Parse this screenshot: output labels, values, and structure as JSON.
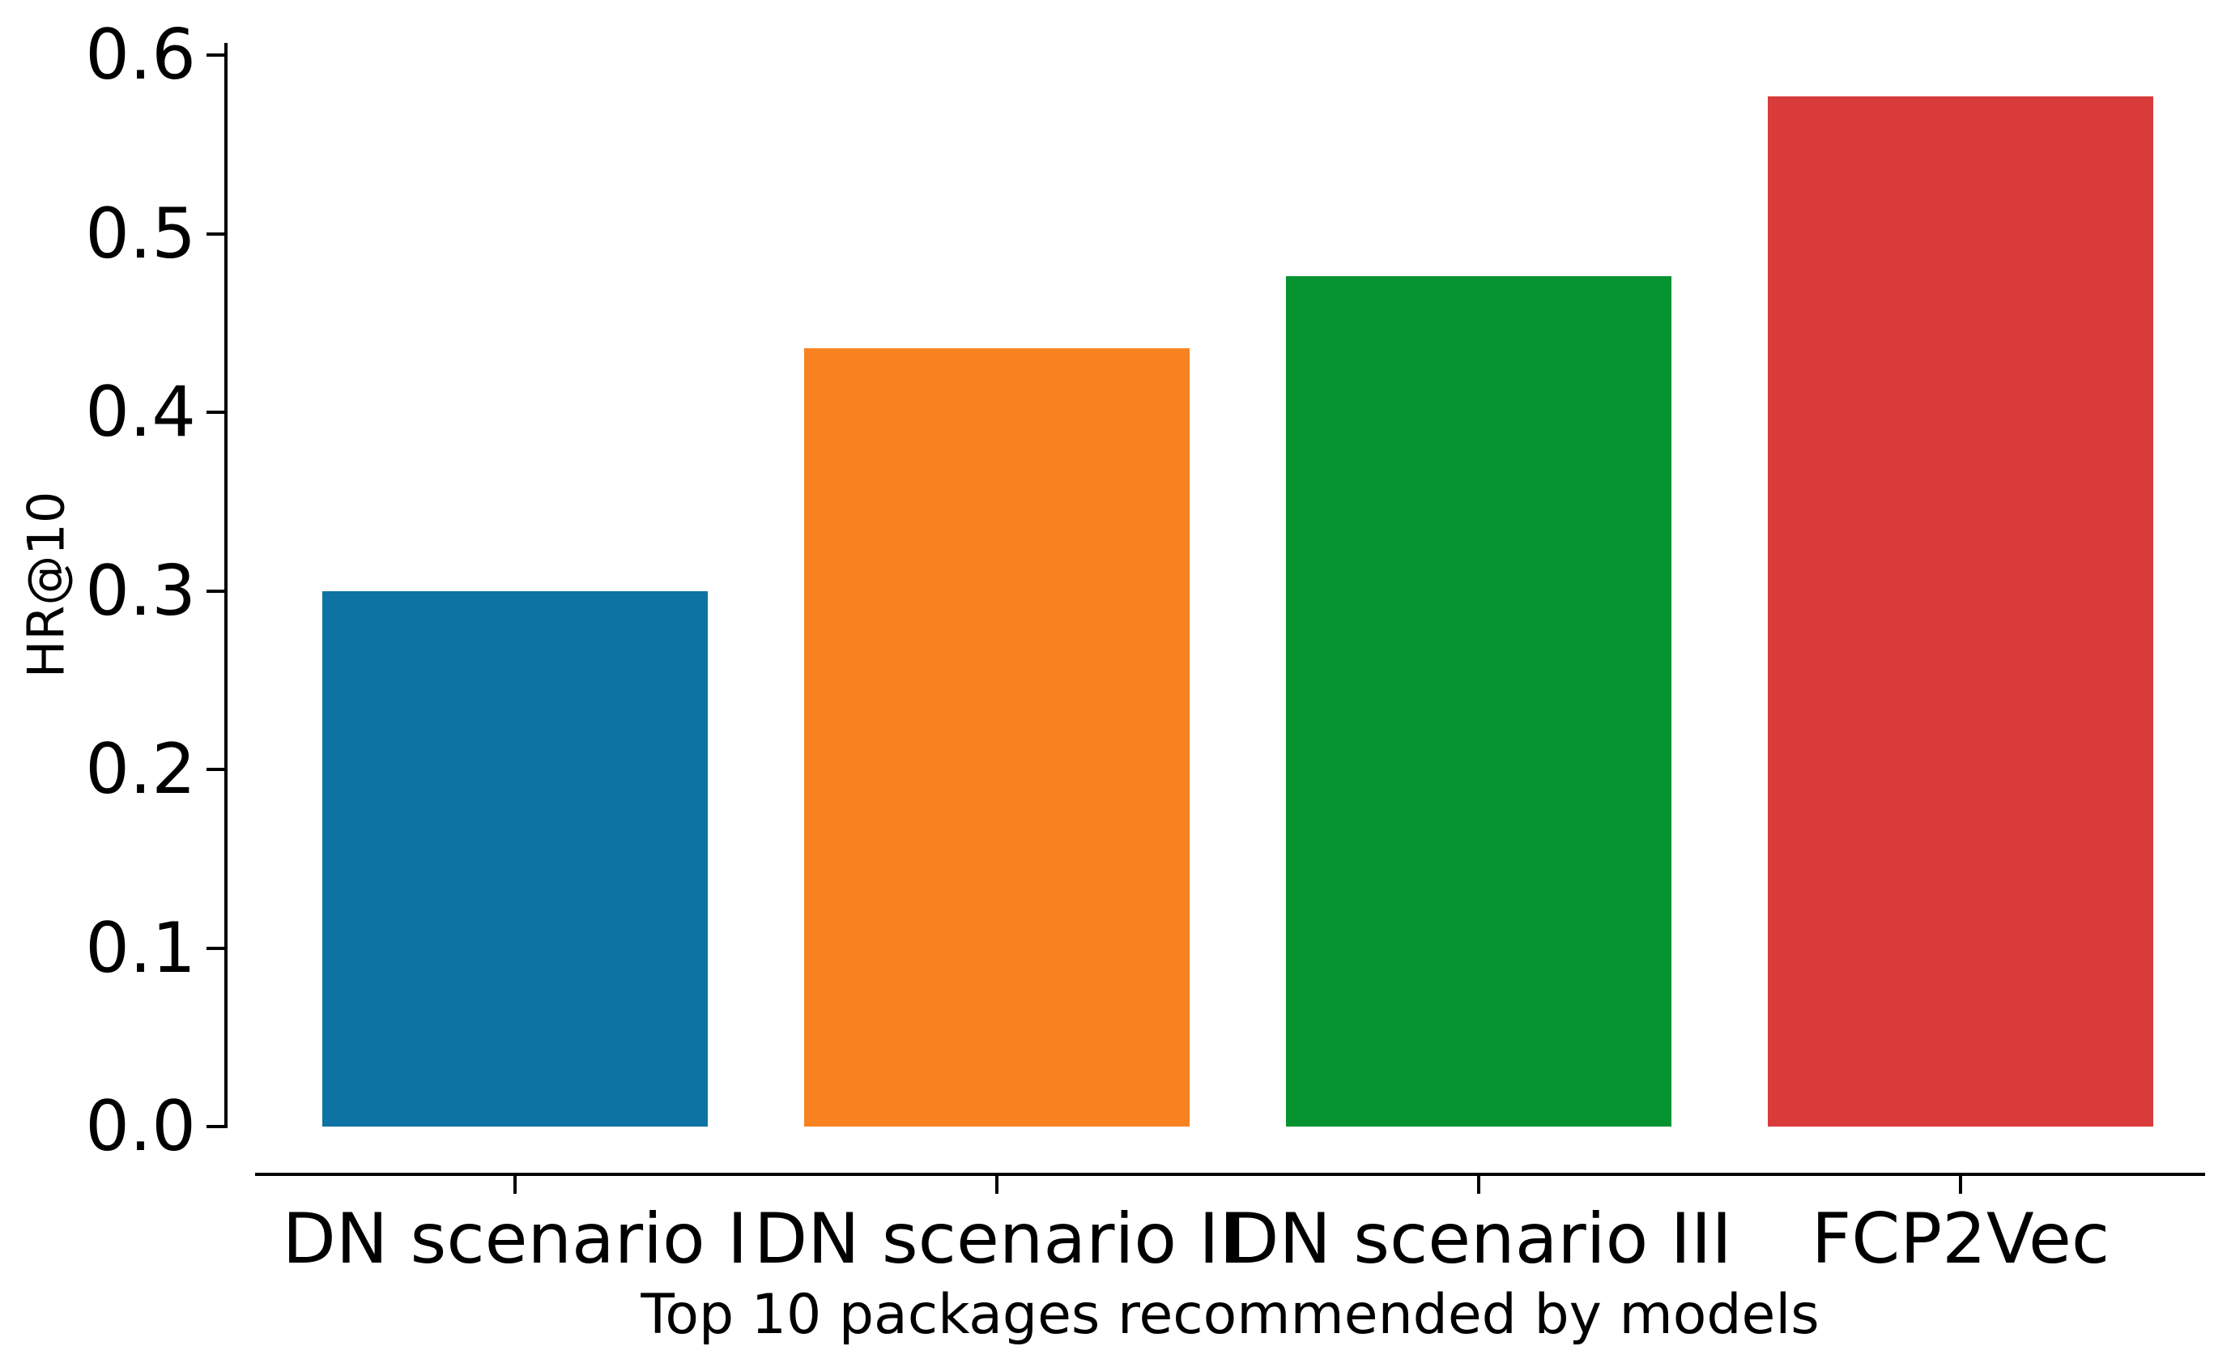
{
  "chart_data": {
    "type": "bar",
    "title": "",
    "xlabel": "Top 10 packages recommended by models",
    "ylabel": "HR@10",
    "categories": [
      "DN scenario I",
      "DN scenario II",
      "DN scenario III",
      "FCP2Vec"
    ],
    "values": [
      0.3,
      0.436,
      0.476,
      0.577
    ],
    "bar_colors": [
      "#0d73a2",
      "#f88220",
      "#059330",
      "#d93b3b"
    ],
    "axis_color": "#000000",
    "background_color": "#ffffff",
    "ylim": [
      0,
      0.6
    ],
    "ytick_values": [
      0.0,
      0.1,
      0.2,
      0.3,
      0.4,
      0.5,
      0.6
    ],
    "ytick_labels": [
      "0.0",
      "0.1",
      "0.2",
      "0.3",
      "0.4",
      "0.5",
      "0.6"
    ],
    "grid": false,
    "legend": "none",
    "bar_width_fraction": 0.8
  }
}
